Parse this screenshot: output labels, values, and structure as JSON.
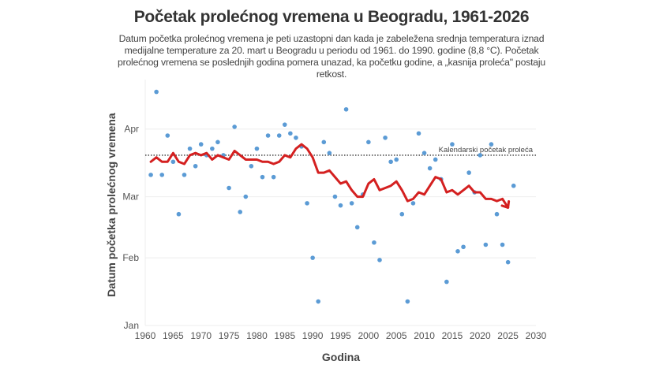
{
  "chart_data": {
    "type": "scatter",
    "title": "Početak prolećnog vremena u Beogradu, 1961-2026",
    "subtitle": "Datum početka prolećnog vremena je peti uzastopni dan kada je zabeležena srednja temperatura iznad medijalne temperature za 20. mart u Beogradu u periodu od 1961. do 1990. godine (8,8 °C). Početak prolećnog vremena se poslednjih godina pomera unazad, ka početku godine, a „kasnija proleća\" postaju retkost.",
    "xlabel": "Godina",
    "ylabel": "Datum početka prolećnog vremena",
    "xlim": [
      1960,
      2030
    ],
    "ylim": [
      "01-01",
      "04-20"
    ],
    "x_ticks": [
      "1960",
      "1965",
      "1970",
      "1975",
      "1980",
      "1985",
      "1990",
      "1995",
      "2000",
      "2005",
      "2010",
      "2015",
      "2020",
      "2025",
      "2030"
    ],
    "y_ticks": [
      {
        "label": "Jan",
        "date": "01-01"
      },
      {
        "label": "Feb",
        "date": "02-01"
      },
      {
        "label": "Mar",
        "date": "03-01"
      },
      {
        "label": "Apr",
        "date": "04-01"
      }
    ],
    "grid": true,
    "reference_line": {
      "date": "03-20",
      "label": "Kalendarski početak proleća"
    },
    "colors": {
      "points": "#5b9bd5",
      "trend": "#d42020",
      "reference": "#333333"
    },
    "points": {
      "x": [
        1961,
        1962,
        1963,
        1964,
        1965,
        1966,
        1967,
        1968,
        1969,
        1970,
        1971,
        1972,
        1973,
        1974,
        1975,
        1976,
        1977,
        1978,
        1979,
        1980,
        1981,
        1982,
        1983,
        1984,
        1985,
        1986,
        1987,
        1988,
        1989,
        1990,
        1991,
        1992,
        1993,
        1994,
        1995,
        1996,
        1997,
        1998,
        1999,
        2000,
        2001,
        2002,
        2003,
        2004,
        2005,
        2006,
        2007,
        2008,
        2009,
        2010,
        2011,
        2012,
        2013,
        2014,
        2015,
        2016,
        2017,
        2018,
        2019,
        2020,
        2021,
        2022,
        2023,
        2024,
        2025,
        2026
      ],
      "y": [
        "03-11",
        "04-18",
        "03-11",
        "03-29",
        "03-17",
        "02-21",
        "03-11",
        "03-23",
        "03-15",
        "03-25",
        "03-20",
        "03-23",
        "03-26",
        "03-20",
        "03-05",
        "04-02",
        "02-22",
        "03-01",
        "03-15",
        "03-23",
        "03-10",
        "03-29",
        "03-10",
        "03-29",
        "04-03",
        "03-30",
        "03-28",
        "03-24",
        "02-26",
        "02-01",
        "01-12",
        "03-26",
        "03-21",
        "03-01",
        "02-25",
        "04-10",
        "02-26",
        "02-15",
        "03-02",
        "03-26",
        "02-08",
        "01-31",
        "03-28",
        "03-17",
        "03-18",
        "02-21",
        "01-12",
        "02-26",
        "03-30",
        "03-21",
        "03-14",
        "03-18",
        "03-09",
        "01-21",
        "03-25",
        "02-04",
        "02-06",
        "03-12",
        "03-03",
        "03-20",
        "02-07",
        "03-25",
        "02-21",
        "02-07",
        "01-30",
        "03-06"
      ]
    },
    "trend": {
      "x": [
        1961,
        1962,
        1963,
        1964,
        1965,
        1966,
        1967,
        1968,
        1969,
        1970,
        1971,
        1972,
        1973,
        1974,
        1975,
        1976,
        1977,
        1978,
        1979,
        1980,
        1981,
        1982,
        1983,
        1984,
        1985,
        1986,
        1987,
        1988,
        1989,
        1990,
        1991,
        1992,
        1993,
        1994,
        1995,
        1996,
        1997,
        1998,
        1999,
        2000,
        2001,
        2002,
        2003,
        2004,
        2005,
        2006,
        2007,
        2008,
        2009,
        2010,
        2011,
        2012,
        2013,
        2014,
        2015,
        2016,
        2017,
        2018,
        2019,
        2020,
        2021,
        2022,
        2023,
        2024,
        2025
      ],
      "y": [
        "03-17",
        "03-19",
        "03-17",
        "03-17",
        "03-21",
        "03-17",
        "03-16",
        "03-20",
        "03-21",
        "03-20",
        "03-21",
        "03-18",
        "03-20",
        "03-19",
        "03-18",
        "03-22",
        "03-20",
        "03-18",
        "03-18",
        "03-18",
        "03-17",
        "03-17",
        "03-16",
        "03-17",
        "03-20",
        "03-19",
        "03-23",
        "03-25",
        "03-23",
        "03-19",
        "03-12",
        "03-12",
        "03-13",
        "03-10",
        "03-07",
        "03-08",
        "03-04",
        "03-01",
        "03-01",
        "03-07",
        "03-09",
        "03-04",
        "03-05",
        "03-06",
        "03-08",
        "03-04",
        "02-27",
        "02-28",
        "03-03",
        "03-02",
        "03-06",
        "03-10",
        "03-09",
        "03-03",
        "03-04",
        "03-02",
        "03-04",
        "03-06",
        "03-03",
        "03-03",
        "02-28",
        "02-28",
        "02-27",
        "02-28",
        "02-24"
      ]
    }
  }
}
